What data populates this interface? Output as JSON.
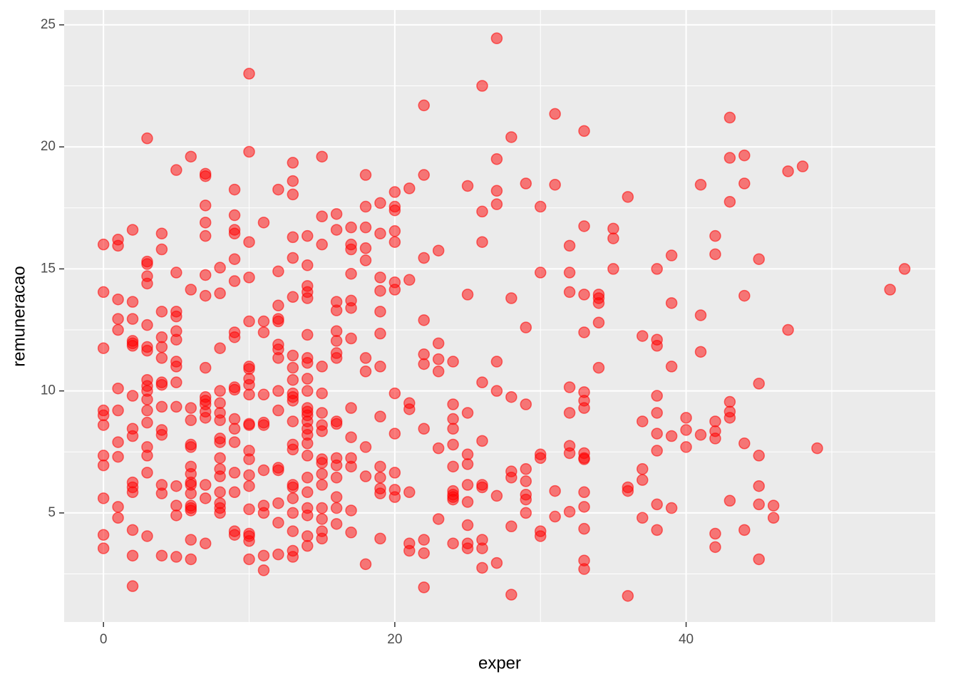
{
  "chart_data": {
    "type": "scatter",
    "x_label": "exper",
    "y_label": "remuneracao",
    "color": "#ff0000",
    "grid": true,
    "xlim": [
      -2.7,
      57.1
    ],
    "ylim": [
      0.53,
      25.61
    ],
    "xticks": [
      0,
      20,
      40
    ],
    "yticks": [
      5,
      10,
      15,
      20,
      25
    ],
    "x": [
      0,
      0,
      0,
      0,
      0,
      0,
      0,
      0,
      0,
      0,
      0,
      1,
      1,
      1,
      1,
      1,
      1,
      1,
      1,
      1,
      1,
      1,
      2,
      2,
      2,
      2,
      2,
      2,
      2,
      2,
      2,
      2,
      2,
      2,
      2,
      2,
      2,
      3,
      3,
      3,
      3,
      3,
      3,
      3,
      3,
      3,
      3,
      3,
      3,
      3,
      3,
      3,
      3,
      3,
      3,
      4,
      4,
      4,
      4,
      4,
      4,
      4,
      4,
      4,
      4,
      4,
      4,
      4,
      4,
      5,
      5,
      5,
      5,
      5,
      5,
      5,
      5,
      5,
      5,
      5,
      5,
      5,
      5,
      6,
      6,
      6,
      6,
      6,
      6,
      6,
      6,
      6,
      6,
      6,
      6,
      6,
      6,
      6,
      6,
      7,
      7,
      7,
      7,
      7,
      7,
      7,
      7,
      7,
      7,
      7,
      7,
      7,
      7,
      7,
      7,
      8,
      8,
      8,
      8,
      8,
      8,
      8,
      8,
      8,
      8,
      8,
      8,
      8,
      8,
      8,
      8,
      9,
      9,
      9,
      9,
      9,
      9,
      9,
      9,
      9,
      9,
      9,
      9,
      9,
      9,
      9,
      9,
      9,
      10,
      10,
      10,
      10,
      10,
      10,
      10,
      10,
      10,
      10,
      10,
      10,
      10,
      10,
      10,
      10,
      10,
      10,
      10,
      10,
      10,
      11,
      11,
      11,
      11,
      11,
      11,
      11,
      11,
      11,
      11,
      11,
      12,
      12,
      12,
      12,
      12,
      12,
      12,
      12,
      12,
      12,
      12,
      12,
      12,
      12,
      12,
      13,
      13,
      13,
      13,
      13,
      13,
      13,
      13,
      13,
      13,
      13,
      13,
      13,
      13,
      13,
      13,
      13,
      13,
      13,
      13,
      13,
      13,
      14,
      14,
      14,
      14,
      14,
      14,
      14,
      14,
      14,
      14,
      14,
      14,
      14,
      14,
      14,
      14,
      14,
      14,
      14,
      14,
      14,
      14,
      14,
      14,
      15,
      15,
      15,
      15,
      15,
      15,
      15,
      15,
      15,
      15,
      15,
      15,
      15,
      15,
      15,
      15,
      16,
      16,
      16,
      16,
      16,
      16,
      16,
      16,
      16,
      16,
      16,
      16,
      16,
      16,
      16,
      16,
      17,
      17,
      17,
      17,
      17,
      17,
      17,
      17,
      17,
      17,
      17,
      17,
      17,
      18,
      18,
      18,
      18,
      18,
      18,
      18,
      18,
      18,
      18,
      19,
      19,
      19,
      19,
      19,
      19,
      19,
      19,
      19,
      19,
      19,
      19,
      19,
      20,
      20,
      20,
      20,
      20,
      20,
      20,
      20,
      20,
      20,
      20,
      20,
      21,
      21,
      21,
      21,
      21,
      21,
      21,
      22,
      22,
      22,
      22,
      22,
      22,
      22,
      22,
      22,
      22,
      23,
      23,
      23,
      23,
      23,
      23,
      24,
      24,
      24,
      24,
      24,
      24,
      24,
      24,
      24,
      24,
      24,
      25,
      25,
      25,
      25,
      25,
      25,
      25,
      25,
      25,
      25,
      26,
      26,
      26,
      26,
      26,
      26,
      26,
      26,
      26,
      26,
      27,
      27,
      27,
      27,
      27,
      27,
      27,
      27,
      28,
      28,
      28,
      28,
      28,
      28,
      28,
      29,
      29,
      29,
      29,
      29,
      29,
      29,
      29,
      30,
      30,
      30,
      30,
      30,
      30,
      31,
      31,
      31,
      31,
      32,
      32,
      32,
      32,
      32,
      32,
      32,
      32,
      33,
      33,
      33,
      33,
      33,
      33,
      33,
      33,
      33,
      33,
      33,
      33,
      33,
      33,
      33,
      34,
      34,
      34,
      34,
      34,
      35,
      35,
      35,
      36,
      36,
      36,
      36,
      37,
      37,
      37,
      37,
      37,
      38,
      38,
      38,
      38,
      38,
      38,
      38,
      38,
      38,
      39,
      39,
      39,
      39,
      39,
      40,
      40,
      40,
      41,
      41,
      41,
      41,
      42,
      42,
      42,
      42,
      42,
      42,
      42,
      43,
      43,
      43,
      43,
      43,
      43,
      43,
      44,
      44,
      44,
      44,
      44,
      45,
      45,
      45,
      45,
      45,
      45,
      46,
      46,
      47,
      47,
      48,
      49,
      54,
      55
    ],
    "values": [
      16.0,
      14.05,
      11.75,
      9.2,
      9.0,
      8.6,
      7.35,
      6.95,
      5.6,
      4.1,
      3.55,
      16.2,
      15.95,
      13.75,
      12.95,
      12.5,
      10.1,
      9.2,
      7.9,
      7.3,
      5.25,
      4.8,
      16.6,
      13.65,
      12.95,
      12.05,
      11.95,
      11.85,
      9.8,
      8.45,
      8.15,
      6.25,
      6.05,
      5.85,
      4.3,
      3.25,
      2.0,
      20.35,
      15.3,
      15.2,
      14.7,
      14.4,
      12.7,
      11.8,
      11.65,
      10.45,
      10.2,
      10.0,
      9.65,
      9.2,
      8.7,
      7.7,
      7.35,
      6.65,
      4.05,
      16.45,
      15.8,
      13.25,
      12.2,
      11.8,
      11.35,
      10.35,
      10.25,
      9.35,
      8.4,
      8.2,
      6.15,
      5.8,
      3.25,
      19.05,
      14.85,
      13.25,
      13.05,
      12.45,
      12.1,
      11.2,
      11.0,
      10.35,
      9.35,
      6.1,
      5.3,
      4.9,
      3.2,
      19.6,
      14.15,
      9.3,
      8.8,
      7.8,
      7.7,
      6.9,
      6.6,
      6.25,
      6.15,
      5.8,
      5.3,
      5.2,
      5.1,
      3.9,
      3.1,
      18.9,
      18.8,
      17.6,
      16.9,
      16.35,
      14.75,
      13.9,
      10.95,
      9.75,
      9.6,
      9.45,
      9.15,
      8.9,
      6.15,
      5.6,
      3.75,
      15.05,
      14.0,
      11.75,
      10.0,
      9.5,
      9.1,
      8.8,
      8.05,
      7.9,
      7.25,
      6.8,
      6.5,
      5.85,
      5.4,
      5.2,
      5.0,
      18.25,
      17.2,
      16.6,
      16.45,
      15.4,
      14.5,
      12.4,
      12.2,
      10.15,
      10.05,
      8.85,
      8.45,
      7.9,
      6.65,
      5.85,
      4.25,
      4.1,
      23.0,
      19.8,
      16.1,
      14.65,
      12.85,
      11.0,
      10.9,
      10.5,
      10.25,
      9.85,
      8.65,
      8.6,
      7.55,
      7.2,
      6.55,
      6.1,
      5.15,
      4.15,
      4.05,
      3.85,
      3.1,
      16.9,
      12.85,
      12.4,
      9.85,
      8.7,
      8.6,
      6.75,
      5.3,
      5.0,
      3.25,
      2.65,
      18.25,
      14.9,
      13.5,
      12.95,
      12.85,
      11.9,
      11.7,
      11.35,
      10.0,
      9.2,
      6.85,
      6.75,
      5.4,
      4.6,
      3.3,
      19.35,
      18.6,
      18.05,
      16.3,
      15.45,
      13.85,
      11.45,
      10.95,
      10.45,
      9.9,
      9.75,
      9.6,
      8.75,
      7.8,
      7.6,
      6.15,
      6.05,
      5.6,
      5.0,
      4.25,
      3.45,
      3.2,
      16.35,
      15.15,
      14.3,
      14.05,
      13.8,
      12.3,
      11.35,
      11.15,
      10.5,
      10.0,
      9.3,
      9.15,
      9.0,
      8.75,
      8.45,
      8.2,
      7.85,
      7.35,
      6.45,
      5.85,
      5.2,
      4.9,
      4.05,
      3.65,
      19.6,
      17.15,
      16.0,
      11.0,
      9.9,
      9.1,
      8.6,
      8.35,
      7.2,
      7.05,
      6.6,
      6.15,
      5.2,
      4.75,
      4.25,
      3.95,
      17.25,
      16.6,
      13.65,
      13.3,
      12.45,
      12.05,
      11.55,
      11.35,
      8.75,
      8.65,
      7.25,
      6.95,
      6.45,
      5.65,
      5.2,
      4.55,
      16.7,
      16.0,
      15.8,
      14.8,
      13.7,
      13.4,
      12.15,
      9.3,
      8.1,
      7.25,
      6.9,
      5.1,
      4.2,
      18.85,
      17.55,
      16.7,
      15.85,
      15.35,
      11.35,
      10.8,
      7.7,
      6.5,
      2.9,
      17.7,
      16.45,
      14.65,
      14.1,
      13.25,
      12.35,
      11.0,
      8.95,
      6.9,
      6.45,
      6.0,
      5.8,
      3.95,
      18.15,
      17.55,
      17.4,
      16.55,
      16.1,
      14.45,
      14.15,
      9.9,
      8.25,
      6.65,
      5.95,
      5.65,
      18.3,
      14.55,
      9.5,
      9.25,
      5.85,
      3.75,
      3.45,
      21.7,
      18.85,
      15.45,
      12.9,
      11.5,
      11.1,
      8.45,
      3.9,
      3.35,
      1.95,
      15.75,
      11.95,
      11.3,
      10.8,
      7.65,
      4.75,
      11.2,
      9.45,
      8.85,
      8.45,
      7.8,
      6.9,
      5.9,
      5.75,
      5.65,
      5.55,
      3.75,
      18.4,
      13.95,
      9.1,
      7.4,
      7.0,
      6.15,
      5.45,
      4.5,
      3.75,
      3.55,
      22.5,
      17.35,
      16.1,
      10.35,
      7.95,
      6.15,
      6.05,
      3.9,
      3.55,
      2.75,
      24.45,
      19.5,
      18.2,
      17.65,
      11.2,
      10.0,
      5.7,
      2.95,
      20.4,
      13.8,
      9.75,
      6.7,
      6.45,
      4.45,
      1.65,
      18.5,
      12.6,
      9.45,
      6.8,
      6.3,
      5.75,
      5.55,
      5.0,
      17.55,
      14.85,
      7.4,
      7.25,
      4.25,
      4.05,
      21.35,
      18.45,
      5.9,
      4.85,
      15.95,
      14.85,
      14.05,
      10.15,
      9.1,
      7.75,
      7.45,
      5.05,
      20.65,
      16.75,
      13.95,
      12.4,
      9.95,
      9.6,
      9.3,
      7.45,
      7.25,
      7.2,
      5.85,
      5.25,
      4.35,
      3.05,
      2.7,
      13.95,
      13.8,
      13.6,
      12.8,
      10.95,
      16.65,
      16.25,
      15.0,
      17.95,
      6.05,
      5.9,
      1.6,
      12.25,
      8.75,
      6.8,
      6.35,
      4.8,
      15.0,
      12.1,
      11.85,
      9.8,
      9.1,
      8.25,
      7.55,
      5.35,
      4.3,
      15.55,
      13.6,
      11.0,
      8.15,
      5.2,
      8.9,
      8.4,
      7.7,
      18.45,
      13.1,
      11.6,
      8.2,
      16.35,
      15.6,
      8.75,
      8.35,
      8.05,
      4.15,
      3.6,
      21.2,
      19.55,
      17.75,
      9.55,
      9.15,
      8.9,
      5.5,
      19.65,
      18.5,
      13.9,
      7.85,
      4.3,
      15.4,
      10.3,
      7.35,
      6.1,
      5.35,
      3.1,
      5.3,
      4.8,
      19.0,
      12.5,
      19.2,
      7.65,
      14.15,
      15.0
    ]
  }
}
